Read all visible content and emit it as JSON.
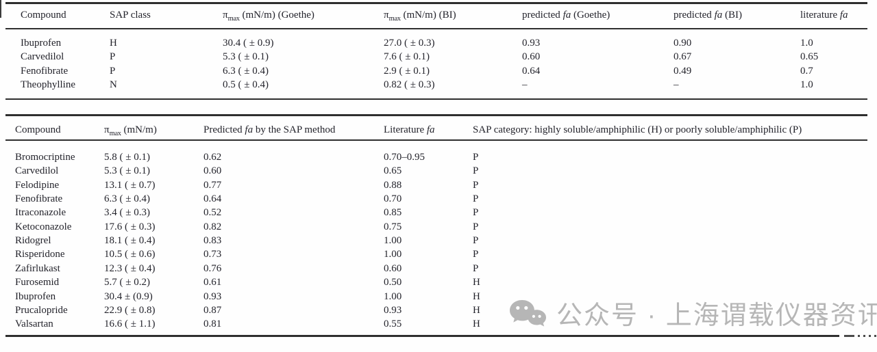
{
  "colors": {
    "text": "#23232b",
    "rule": "#2e2e2e",
    "watermark": "#b6b6b6"
  },
  "table1": {
    "headers": [
      {
        "parts": [
          {
            "t": "Compound"
          }
        ]
      },
      {
        "parts": [
          {
            "t": "SAP class"
          }
        ]
      },
      {
        "parts": [
          {
            "t": "π"
          },
          {
            "t": "max",
            "sub": true
          },
          {
            "t": " (mN/m) (Goethe)"
          }
        ]
      },
      {
        "parts": [
          {
            "t": "π"
          },
          {
            "t": "max",
            "sub": true
          },
          {
            "t": " (mN/m) (BI)"
          }
        ]
      },
      {
        "parts": [
          {
            "t": "predicted "
          },
          {
            "t": "fa",
            "italic": true
          },
          {
            "t": " (Goethe)"
          }
        ]
      },
      {
        "parts": [
          {
            "t": "predicted "
          },
          {
            "t": "fa",
            "italic": true
          },
          {
            "t": " (BI)"
          }
        ]
      },
      {
        "parts": [
          {
            "t": "literature "
          },
          {
            "t": "fa",
            "italic": true
          }
        ]
      }
    ],
    "rows": [
      [
        "Ibuprofen",
        "H",
        "30.4 ( ± 0.9)",
        "27.0 ( ± 0.3)",
        "0.93",
        "0.90",
        "1.0"
      ],
      [
        "Carvedilol",
        "P",
        "5.3 ( ± 0.1)",
        "7.6 ( ± 0.1)",
        "0.60",
        "0.67",
        "0.65"
      ],
      [
        "Fenofibrate",
        "P",
        "6.3 ( ± 0.4)",
        "2.9 ( ± 0.1)",
        "0.64",
        "0.49",
        "0.7"
      ],
      [
        "Theophylline",
        "N",
        "0.5 ( ± 0.4)",
        "0.82 ( ± 0.3)",
        "–",
        "–",
        "1.0"
      ]
    ]
  },
  "table2": {
    "headers": [
      {
        "parts": [
          {
            "t": "Compound"
          }
        ]
      },
      {
        "parts": [
          {
            "t": "π"
          },
          {
            "t": "max",
            "sub": true
          },
          {
            "t": " (mN/m)"
          }
        ]
      },
      {
        "parts": [
          {
            "t": "Predicted "
          },
          {
            "t": "fa",
            "italic": true
          },
          {
            "t": " by the SAP method"
          }
        ]
      },
      {
        "parts": [
          {
            "t": "Literature "
          },
          {
            "t": "fa",
            "italic": true
          }
        ]
      },
      {
        "parts": [
          {
            "t": "SAP category: highly soluble/amphiphilic (H) or poorly soluble/amphiphilic (P)"
          }
        ]
      }
    ],
    "rows": [
      [
        "Bromocriptine",
        "5.8 ( ± 0.1)",
        "0.62",
        "0.70–0.95",
        "P"
      ],
      [
        "Carvedilol",
        "5.3 ( ± 0.1)",
        "0.60",
        "0.65",
        "P"
      ],
      [
        "Felodipine",
        "13.1 ( ± 0.7)",
        "0.77",
        "0.88",
        "P"
      ],
      [
        "Fenofibrate",
        "6.3 ( ± 0.4)",
        "0.64",
        "0.70",
        "P"
      ],
      [
        "Itraconazole",
        "3.4 ( ± 0.3)",
        "0.52",
        "0.85",
        "P"
      ],
      [
        "Ketoconazole",
        "17.6 ( ± 0.3)",
        "0.82",
        "0.75",
        "P"
      ],
      [
        "Ridogrel",
        "18.1 ( ± 0.4)",
        "0.83",
        "1.00",
        "P"
      ],
      [
        "Risperidone",
        "10.5 ( ± 0.6)",
        "0.73",
        "1.00",
        "P"
      ],
      [
        "Zafirlukast",
        "12.3 ( ± 0.4)",
        "0.76",
        "0.60",
        "P"
      ],
      [
        "Furosemid",
        "5.7 ( ± 0.2)",
        "0.61",
        "0.50",
        "H"
      ],
      [
        "Ibuprofen",
        "30.4 ± (0.9)",
        "0.93",
        "1.00",
        "H"
      ],
      [
        "Prucalopride",
        "22.9 ( ± 0.8)",
        "0.87",
        "0.93",
        "H"
      ],
      [
        "Valsartan",
        "16.6 ( ± 1.1)",
        "0.81",
        "0.55",
        "H"
      ]
    ]
  },
  "watermark": {
    "icon": "wechat-icon",
    "text": "公众号 · 上海谓载仪器资讯"
  }
}
